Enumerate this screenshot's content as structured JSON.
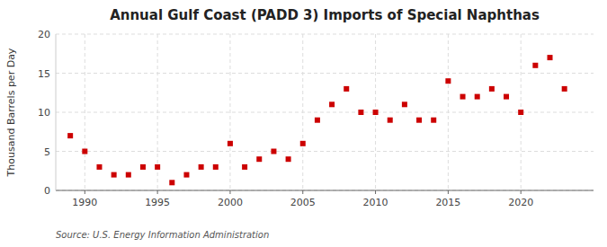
{
  "chart_data": {
    "type": "scatter",
    "title": "Annual Gulf Coast (PADD 3) Imports of Special Naphthas",
    "ylabel": "Thousand Barrels per Day",
    "source": "Source: U.S. Energy Information Administration",
    "x": [
      1989,
      1990,
      1991,
      1992,
      1993,
      1994,
      1995,
      1996,
      1997,
      1998,
      1999,
      2000,
      2001,
      2002,
      2003,
      2004,
      2005,
      2006,
      2007,
      2008,
      2009,
      2010,
      2011,
      2012,
      2013,
      2014,
      2015,
      2016,
      2017,
      2018,
      2019,
      2020,
      2021,
      2022,
      2023
    ],
    "values": [
      7,
      5,
      3,
      2,
      2,
      3,
      3,
      1,
      2,
      3,
      3,
      6,
      3,
      4,
      5,
      4,
      6,
      9,
      11,
      13,
      10,
      10,
      9,
      11,
      9,
      9,
      14,
      12,
      12,
      13,
      12,
      10,
      16,
      17,
      13
    ],
    "color": "#cc0000",
    "marker": "square",
    "xlim": [
      1988,
      2025
    ],
    "ylim": [
      0,
      20
    ],
    "xticks": [
      1990,
      1995,
      2000,
      2005,
      2010,
      2015,
      2020
    ],
    "yticks": [
      0,
      5,
      10,
      15,
      20
    ],
    "grid": true
  }
}
